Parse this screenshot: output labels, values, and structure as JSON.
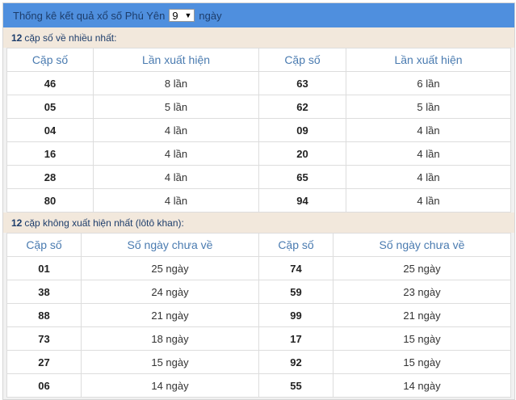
{
  "header": {
    "title": "Thống kê kết quả xổ số Phú Yên",
    "days_value": "9",
    "days_suffix": "ngày"
  },
  "most": {
    "label_count": "12",
    "label_text": "cặp số về nhiều nhất:",
    "col1": "Cặp số",
    "col2": "Lần xuất hiện",
    "rows": [
      [
        "46",
        "8 lần",
        "63",
        "6 lần"
      ],
      [
        "05",
        "5 lần",
        "62",
        "5 lần"
      ],
      [
        "04",
        "4 lần",
        "09",
        "4 lần"
      ],
      [
        "16",
        "4 lần",
        "20",
        "4 lần"
      ],
      [
        "28",
        "4 lần",
        "65",
        "4 lần"
      ],
      [
        "80",
        "4 lần",
        "94",
        "4 lần"
      ]
    ]
  },
  "absent": {
    "label_count": "12",
    "label_text": "cặp không xuất hiện nhất (lôtô khan):",
    "col1": "Cặp số",
    "col2": "Số ngày chưa về",
    "rows": [
      [
        "01",
        "25 ngày",
        "74",
        "25 ngày"
      ],
      [
        "38",
        "24 ngày",
        "59",
        "23 ngày"
      ],
      [
        "88",
        "21 ngày",
        "99",
        "21 ngày"
      ],
      [
        "73",
        "18 ngày",
        "17",
        "15 ngày"
      ],
      [
        "27",
        "15 ngày",
        "92",
        "15 ngày"
      ],
      [
        "06",
        "14 ngày",
        "55",
        "14 ngày"
      ]
    ]
  }
}
